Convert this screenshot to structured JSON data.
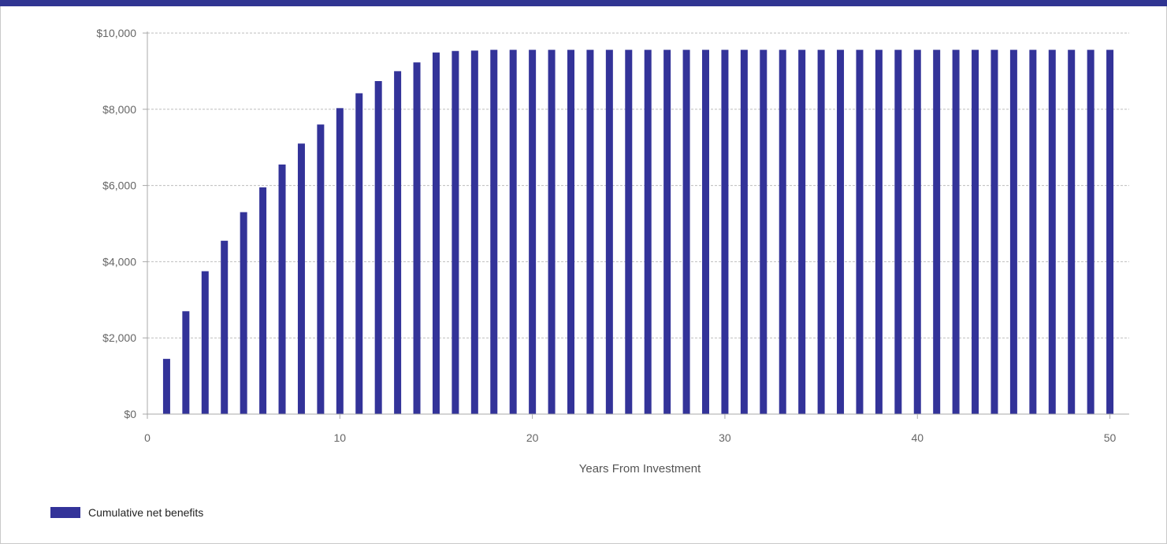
{
  "colors": {
    "top_bar": "#303592",
    "bar": "#333399",
    "grid": "#bdbdbd",
    "axis": "#a8a8a8"
  },
  "chart_data": {
    "type": "bar",
    "xlabel": "Years From Investment",
    "ylabel": "",
    "x_ticks": [
      0,
      10,
      20,
      30,
      40,
      50
    ],
    "y_ticks": [
      "$0",
      "$2,000",
      "$4,000",
      "$6,000",
      "$8,000",
      "$10,000"
    ],
    "xlim": [
      0,
      51
    ],
    "ylim": [
      0,
      10000
    ],
    "grid": true,
    "legend_position": "bottom-left",
    "series": [
      {
        "name": "Cumulative net benefits",
        "x": [
          1,
          2,
          3,
          4,
          5,
          6,
          7,
          8,
          9,
          10,
          11,
          12,
          13,
          14,
          15,
          16,
          17,
          18,
          19,
          20,
          21,
          22,
          23,
          24,
          25,
          26,
          27,
          28,
          29,
          30,
          31,
          32,
          33,
          34,
          35,
          36,
          37,
          38,
          39,
          40,
          41,
          42,
          43,
          44,
          45,
          46,
          47,
          48,
          49,
          50
        ],
        "values": [
          1450,
          2700,
          3750,
          4550,
          5300,
          5950,
          6550,
          7100,
          7600,
          8030,
          8420,
          8740,
          9000,
          9230,
          9490,
          9530,
          9540,
          9560,
          9560,
          9560,
          9560,
          9560,
          9560,
          9560,
          9560,
          9560,
          9560,
          9560,
          9560,
          9560,
          9560,
          9560,
          9560,
          9560,
          9560,
          9560,
          9560,
          9560,
          9560,
          9560,
          9560,
          9560,
          9560,
          9560,
          9560,
          9560,
          9560,
          9560,
          9560,
          9560
        ]
      }
    ]
  }
}
